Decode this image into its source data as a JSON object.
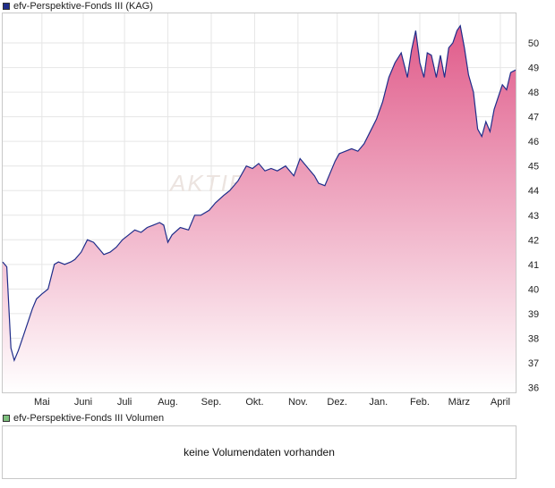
{
  "legend_price": {
    "label": "efv-Perspektive-Fonds III (KAG)",
    "color": "#1f2d8a"
  },
  "legend_volume": {
    "label": "efv-Perspektive-Fonds III Volumen",
    "color": "#7ec07e"
  },
  "watermark": "AKTIEN",
  "volume_panel": {
    "message": "keine Volumendaten vorhanden"
  },
  "colors": {
    "line": "#1f2d8a",
    "fill_top": "#e05b8a",
    "fill_bottom": "#ffffff",
    "grid": "#e6e6e6"
  },
  "chart_data": {
    "type": "area",
    "title": "",
    "xlabel": "",
    "ylabel": "",
    "grid": true,
    "legend": "top-left",
    "y_axis_side": "right",
    "ylim": [
      35.8,
      51.2
    ],
    "y_ticks": [
      36,
      37,
      38,
      39,
      40,
      41,
      42,
      43,
      44,
      45,
      46,
      47,
      48,
      49,
      50
    ],
    "x_range": [
      0,
      12.42
    ],
    "x_ticks": [
      {
        "label": "Mai",
        "x": 0.95
      },
      {
        "label": "Juni",
        "x": 1.95
      },
      {
        "label": "Juli",
        "x": 2.95
      },
      {
        "label": "Aug.",
        "x": 4.0
      },
      {
        "label": "Sep.",
        "x": 5.05
      },
      {
        "label": "Okt.",
        "x": 6.1
      },
      {
        "label": "Nov.",
        "x": 7.15
      },
      {
        "label": "Dez.",
        "x": 8.1
      },
      {
        "label": "Jan.",
        "x": 9.1
      },
      {
        "label": "Feb.",
        "x": 10.1
      },
      {
        "label": "März",
        "x": 11.05
      },
      {
        "label": "April",
        "x": 12.05
      }
    ],
    "series": [
      {
        "name": "efv-Perspektive-Fonds III (KAG)",
        "x": [
          0.0,
          0.1,
          0.2,
          0.28,
          0.38,
          0.5,
          0.6,
          0.72,
          0.82,
          0.95,
          1.1,
          1.25,
          1.35,
          1.5,
          1.65,
          1.75,
          1.9,
          2.05,
          2.2,
          2.35,
          2.45,
          2.6,
          2.75,
          2.9,
          3.05,
          3.2,
          3.35,
          3.5,
          3.65,
          3.8,
          3.9,
          4.0,
          4.1,
          4.3,
          4.5,
          4.65,
          4.8,
          5.0,
          5.15,
          5.35,
          5.5,
          5.7,
          5.9,
          6.05,
          6.2,
          6.35,
          6.5,
          6.65,
          6.85,
          7.05,
          7.2,
          7.4,
          7.55,
          7.65,
          7.8,
          7.95,
          8.05,
          8.15,
          8.3,
          8.45,
          8.6,
          8.75,
          8.9,
          9.05,
          9.2,
          9.35,
          9.5,
          9.65,
          9.8,
          9.9,
          10.0,
          10.1,
          10.2,
          10.28,
          10.38,
          10.5,
          10.6,
          10.7,
          10.8,
          10.9,
          11.0,
          11.08,
          11.18,
          11.28,
          11.4,
          11.5,
          11.6,
          11.7,
          11.8,
          11.9,
          12.0,
          12.1,
          12.2,
          12.3,
          12.42
        ],
        "y": [
          41.1,
          40.9,
          37.6,
          37.1,
          37.5,
          38.1,
          38.6,
          39.2,
          39.6,
          39.8,
          40.0,
          41.0,
          41.1,
          41.0,
          41.1,
          41.2,
          41.5,
          42.0,
          41.9,
          41.6,
          41.4,
          41.5,
          41.7,
          42.0,
          42.2,
          42.4,
          42.3,
          42.5,
          42.6,
          42.7,
          42.6,
          41.9,
          42.2,
          42.5,
          42.4,
          43.0,
          43.0,
          43.2,
          43.5,
          43.8,
          44.0,
          44.4,
          45.0,
          44.9,
          45.1,
          44.8,
          44.9,
          44.8,
          45.0,
          44.6,
          45.3,
          44.9,
          44.6,
          44.3,
          44.2,
          44.8,
          45.2,
          45.5,
          45.6,
          45.7,
          45.6,
          45.9,
          46.4,
          46.9,
          47.6,
          48.6,
          49.2,
          49.6,
          48.6,
          49.7,
          50.5,
          49.2,
          48.6,
          49.6,
          49.5,
          48.6,
          49.5,
          48.6,
          49.8,
          50.0,
          50.5,
          50.7,
          49.8,
          48.7,
          48.0,
          46.5,
          46.2,
          46.8,
          46.4,
          47.3,
          47.8,
          48.3,
          48.1,
          48.8,
          48.9
        ]
      }
    ]
  }
}
